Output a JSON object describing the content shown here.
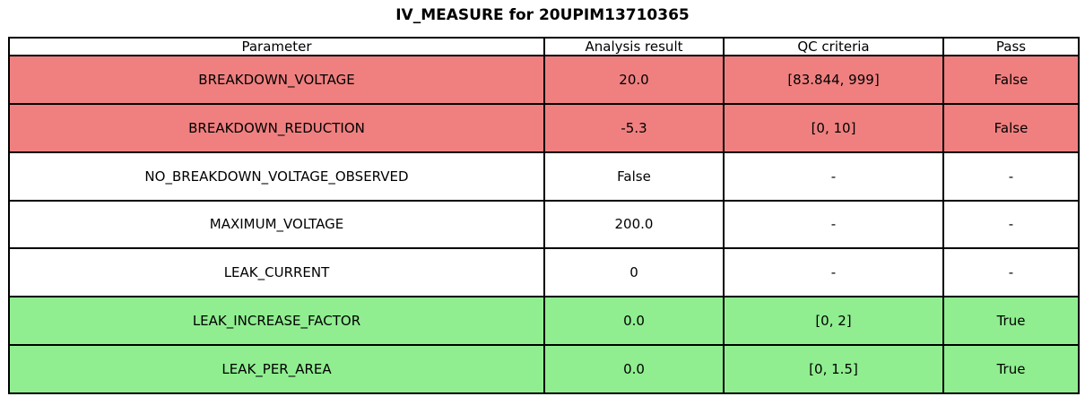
{
  "chart_data": {
    "type": "table",
    "title": "IV_MEASURE for 20UPIM13710365",
    "columns": [
      "Parameter",
      "Analysis result",
      "QC criteria",
      "Pass"
    ],
    "rows": [
      [
        "BREAKDOWN_VOLTAGE",
        "20.0",
        "[83.844, 999]",
        "False"
      ],
      [
        "BREAKDOWN_REDUCTION",
        "-5.3",
        "[0, 10]",
        "False"
      ],
      [
        "NO_BREAKDOWN_VOLTAGE_OBSERVED",
        "False",
        "-",
        "-"
      ],
      [
        "MAXIMUM_VOLTAGE",
        "200.0",
        "-",
        "-"
      ],
      [
        "LEAK_CURRENT",
        "0",
        "-",
        "-"
      ],
      [
        "LEAK_INCREASE_FACTOR",
        "0.0",
        "[0, 2]",
        "True"
      ],
      [
        "LEAK_PER_AREA",
        "0.0",
        "[0, 1.5]",
        "True"
      ]
    ],
    "row_status": [
      "fail",
      "fail",
      "neutral",
      "neutral",
      "neutral",
      "pass",
      "pass"
    ],
    "colors": {
      "fail": "#f08080",
      "pass": "#90ee90",
      "neutral": "#ffffff",
      "border": "#000000",
      "text": "#000000"
    },
    "layout": {
      "header_background": "#ffffff",
      "grid": "on",
      "legend": "none"
    }
  }
}
